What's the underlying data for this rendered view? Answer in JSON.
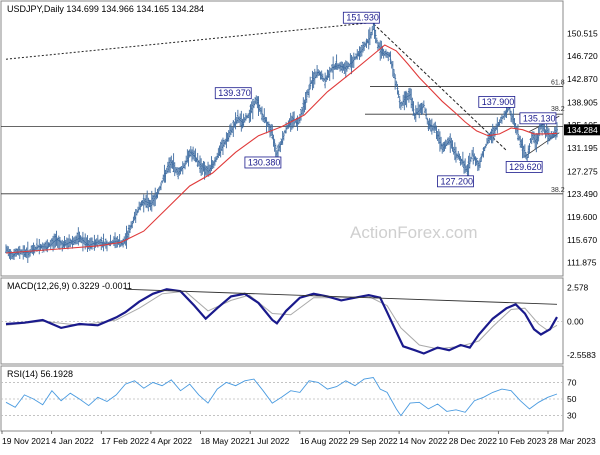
{
  "chart_data": [
    {
      "type": "candlestick",
      "title": "USDJPY,Daily  134.699 134.966 134.165 134.284",
      "ylim": [
        110.3,
        154.5
      ],
      "y_ticks": [
        "150.515",
        "146.720",
        "142.870",
        "138.905",
        "135.105",
        "131.195",
        "127.275",
        "123.490",
        "119.600",
        "115.670",
        "111.875"
      ],
      "y_tick_values": [
        150.515,
        146.72,
        142.87,
        138.905,
        135.105,
        131.195,
        127.275,
        123.49,
        119.6,
        115.67,
        111.875
      ],
      "last_price": "134.284",
      "last_price_value": 134.284,
      "x_labels": [
        "19 Nov 2021",
        "4 Jan 2022",
        "17 Feb 2022",
        "4 Apr 2022",
        "18 May 2022",
        "1 Jul 2022",
        "16 Aug 2022",
        "29 Sep 2022",
        "14 Nov 2022",
        "28 Dec 2022",
        "10 Feb 2023",
        "28 Mar 2023"
      ],
      "price_path": [
        [
          0,
          114.0
        ],
        [
          3,
          113.2
        ],
        [
          6,
          113.8
        ],
        [
          10,
          113.5
        ],
        [
          14,
          114.6
        ],
        [
          18,
          114.5
        ],
        [
          22,
          115.8
        ],
        [
          25,
          114.9
        ],
        [
          28,
          115.3
        ],
        [
          32,
          116.0
        ],
        [
          36,
          114.8
        ],
        [
          40,
          115.4
        ],
        [
          44,
          115.0
        ],
        [
          48,
          115.5
        ],
        [
          51,
          115.0
        ],
        [
          54,
          117.5
        ],
        [
          57,
          120.5
        ],
        [
          60,
          122.3
        ],
        [
          63,
          121.8
        ],
        [
          66,
          123.5
        ],
        [
          69,
          126.5
        ],
        [
          72,
          128.8
        ],
        [
          75,
          127.0
        ],
        [
          78,
          128.5
        ],
        [
          80,
          130.5
        ],
        [
          82,
          129.8
        ],
        [
          85,
          128.2
        ],
        [
          88,
          127.2
        ],
        [
          91,
          129.0
        ],
        [
          94,
          131.3
        ],
        [
          97,
          133.2
        ],
        [
          99,
          134.8
        ],
        [
          101,
          136.2
        ],
        [
          103,
          135.5
        ],
        [
          106,
          137.0
        ],
        [
          109,
          139.37
        ],
        [
          112,
          136.5
        ],
        [
          114,
          135.2
        ],
        [
          116,
          133.5
        ],
        [
          118,
          130.38
        ],
        [
          120,
          132.3
        ],
        [
          122,
          134.5
        ],
        [
          125,
          136.2
        ],
        [
          127,
          135.3
        ],
        [
          130,
          138.8
        ],
        [
          133,
          142.3
        ],
        [
          136,
          144.0
        ],
        [
          139,
          142.5
        ],
        [
          142,
          144.8
        ],
        [
          145,
          145.2
        ],
        [
          148,
          144.5
        ],
        [
          151,
          146.0
        ],
        [
          154,
          147.3
        ],
        [
          157,
          148.9
        ],
        [
          159,
          150.3
        ],
        [
          160,
          151.93
        ],
        [
          162,
          148.5
        ],
        [
          165,
          147.2
        ],
        [
          167,
          146.8
        ],
        [
          170,
          142.2
        ],
        [
          172,
          138.3
        ],
        [
          174,
          139.8
        ],
        [
          176,
          140.2
        ],
        [
          178,
          136.8
        ],
        [
          180,
          137.6
        ],
        [
          182,
          138.4
        ],
        [
          184,
          135.2
        ],
        [
          187,
          134.6
        ],
        [
          190,
          131.0
        ],
        [
          193,
          132.5
        ],
        [
          196,
          130.2
        ],
        [
          199,
          128.8
        ],
        [
          201,
          127.2
        ],
        [
          203,
          130.2
        ],
        [
          206,
          128.3
        ],
        [
          208,
          130.8
        ],
        [
          210,
          132.5
        ],
        [
          213,
          134.2
        ],
        [
          216,
          136.2
        ],
        [
          219,
          137.9
        ],
        [
          221,
          136.0
        ],
        [
          223,
          133.5
        ],
        [
          225,
          131.2
        ],
        [
          227,
          129.62
        ],
        [
          229,
          133.3
        ],
        [
          231,
          132.2
        ],
        [
          233,
          135.13
        ],
        [
          235,
          134.0
        ],
        [
          237,
          133.0
        ],
        [
          240,
          134.284
        ]
      ],
      "ma_path": [
        [
          0,
          113.5
        ],
        [
          20,
          114.1
        ],
        [
          40,
          114.7
        ],
        [
          50,
          115.3
        ],
        [
          60,
          117.2
        ],
        [
          70,
          121.0
        ],
        [
          80,
          124.8
        ],
        [
          90,
          127.0
        ],
        [
          100,
          130.5
        ],
        [
          110,
          133.3
        ],
        [
          120,
          134.8
        ],
        [
          130,
          136.8
        ],
        [
          140,
          140.7
        ],
        [
          150,
          143.8
        ],
        [
          160,
          147.0
        ],
        [
          165,
          148.6
        ],
        [
          170,
          147.6
        ],
        [
          175,
          145.4
        ],
        [
          180,
          143.1
        ],
        [
          185,
          141.1
        ],
        [
          190,
          139.1
        ],
        [
          195,
          137.4
        ],
        [
          200,
          135.6
        ],
        [
          205,
          134.1
        ],
        [
          210,
          133.3
        ],
        [
          215,
          133.6
        ],
        [
          220,
          134.6
        ],
        [
          225,
          134.3
        ],
        [
          230,
          133.6
        ],
        [
          235,
          133.6
        ],
        [
          240,
          133.7
        ]
      ],
      "annotations": {
        "peak": {
          "label": "151.930",
          "value": 151.93
        },
        "high_2": {
          "label": "139.370",
          "value": 139.37
        },
        "low_2": {
          "label": "130.380",
          "value": 130.38
        },
        "low_3": {
          "label": "127.200",
          "value": 127.2
        },
        "high_3": {
          "label": "137.900",
          "value": 137.9
        },
        "low_4": {
          "label": "129.620",
          "value": 129.62
        },
        "high_4": {
          "label": "135.130",
          "value": 135.13
        }
      },
      "fib_levels": [
        {
          "label": "61.8",
          "value": 141.58
        },
        {
          "label": "38.2",
          "value": 137.6
        },
        {
          "label": "38.2",
          "value": 123.49
        }
      ],
      "horizontal_lines": [
        {
          "value": 134.85
        },
        {
          "value": 123.49
        }
      ],
      "watermark": "ActionForex.com",
      "color_up": "#3d6ba0",
      "color_ma": "#e03a3a"
    },
    {
      "type": "line",
      "title": "MACD(12,26,9) 0.3229 -0.0011",
      "ylim": [
        -3.1,
        3.0
      ],
      "y_ticks": [
        "2.578",
        "0.00",
        "-2.5583"
      ],
      "y_tick_values": [
        2.578,
        0.0,
        -2.5583
      ],
      "series": [
        {
          "name": "MACD",
          "color": "#1a1a8c",
          "points": [
            [
              0,
              -0.2
            ],
            [
              8,
              -0.1
            ],
            [
              16,
              0.1
            ],
            [
              24,
              -0.5
            ],
            [
              32,
              -0.2
            ],
            [
              40,
              -0.3
            ],
            [
              48,
              0.3
            ],
            [
              52,
              0.7
            ],
            [
              58,
              1.5
            ],
            [
              64,
              2.1
            ],
            [
              70,
              2.45
            ],
            [
              76,
              2.3
            ],
            [
              82,
              1.2
            ],
            [
              87,
              0.2
            ],
            [
              92,
              1.0
            ],
            [
              98,
              1.9
            ],
            [
              104,
              2.1
            ],
            [
              110,
              1.4
            ],
            [
              116,
              0.1
            ],
            [
              118,
              -0.15
            ],
            [
              122,
              0.8
            ],
            [
              128,
              1.8
            ],
            [
              134,
              2.1
            ],
            [
              140,
              1.9
            ],
            [
              146,
              1.6
            ],
            [
              152,
              1.8
            ],
            [
              158,
              2.0
            ],
            [
              163,
              1.8
            ],
            [
              166,
              0.7
            ],
            [
              170,
              -0.8
            ],
            [
              173,
              -1.9
            ],
            [
              178,
              -2.2
            ],
            [
              182,
              -2.45
            ],
            [
              188,
              -2.0
            ],
            [
              193,
              -2.2
            ],
            [
              198,
              -1.8
            ],
            [
              202,
              -2.0
            ],
            [
              206,
              -1.0
            ],
            [
              212,
              0.2
            ],
            [
              218,
              1.0
            ],
            [
              222,
              1.3
            ],
            [
              226,
              0.6
            ],
            [
              230,
              -0.6
            ],
            [
              233,
              -1.0
            ],
            [
              237,
              -0.6
            ],
            [
              240,
              0.32
            ]
          ]
        },
        {
          "name": "Signal",
          "color": "#aaaaaa",
          "points": [
            [
              0,
              -0.3
            ],
            [
              16,
              0.0
            ],
            [
              32,
              -0.3
            ],
            [
              48,
              0.1
            ],
            [
              58,
              1.0
            ],
            [
              68,
              2.1
            ],
            [
              78,
              2.3
            ],
            [
              88,
              0.8
            ],
            [
              98,
              1.6
            ],
            [
              106,
              2.0
            ],
            [
              116,
              0.6
            ],
            [
              124,
              0.5
            ],
            [
              134,
              1.8
            ],
            [
              146,
              1.8
            ],
            [
              158,
              1.9
            ],
            [
              166,
              1.2
            ],
            [
              172,
              -0.5
            ],
            [
              180,
              -1.8
            ],
            [
              188,
              -2.1
            ],
            [
              198,
              -1.9
            ],
            [
              206,
              -1.5
            ],
            [
              212,
              -0.4
            ],
            [
              220,
              0.9
            ],
            [
              226,
              1.0
            ],
            [
              232,
              -0.2
            ],
            [
              236,
              -0.7
            ],
            [
              240,
              -0.3
            ]
          ]
        }
      ],
      "trendline": [
        [
          52,
          2.45
        ],
        [
          240,
          1.3
        ]
      ]
    },
    {
      "type": "line",
      "title": "RSI(14) 56.1928",
      "ylim": [
        15,
        85
      ],
      "y_ticks": [
        "70",
        "50",
        "30"
      ],
      "y_tick_values": [
        70,
        50,
        30
      ],
      "series": [
        {
          "name": "RSI",
          "color": "#4a9be0",
          "points": [
            [
              0,
              46
            ],
            [
              4,
              40
            ],
            [
              8,
              55
            ],
            [
              12,
              50
            ],
            [
              16,
              43
            ],
            [
              20,
              60
            ],
            [
              24,
              48
            ],
            [
              28,
              57
            ],
            [
              32,
              50
            ],
            [
              36,
              42
            ],
            [
              40,
              52
            ],
            [
              44,
              47
            ],
            [
              48,
              55
            ],
            [
              52,
              68
            ],
            [
              56,
              72
            ],
            [
              60,
              63
            ],
            [
              64,
              70
            ],
            [
              68,
              66
            ],
            [
              72,
              73
            ],
            [
              76,
              60
            ],
            [
              80,
              68
            ],
            [
              84,
              55
            ],
            [
              88,
              45
            ],
            [
              92,
              62
            ],
            [
              96,
              70
            ],
            [
              100,
              66
            ],
            [
              104,
              72
            ],
            [
              108,
              74
            ],
            [
              112,
              60
            ],
            [
              116,
              45
            ],
            [
              120,
              52
            ],
            [
              124,
              60
            ],
            [
              128,
              58
            ],
            [
              132,
              72
            ],
            [
              136,
              70
            ],
            [
              140,
              62
            ],
            [
              144,
              65
            ],
            [
              148,
              72
            ],
            [
              152,
              66
            ],
            [
              156,
              74
            ],
            [
              160,
              76
            ],
            [
              163,
              62
            ],
            [
              166,
              58
            ],
            [
              170,
              38
            ],
            [
              172,
              30
            ],
            [
              176,
              45
            ],
            [
              180,
              46
            ],
            [
              184,
              38
            ],
            [
              188,
              44
            ],
            [
              192,
              35
            ],
            [
              196,
              37
            ],
            [
              200,
              34
            ],
            [
              204,
              48
            ],
            [
              208,
              52
            ],
            [
              212,
              58
            ],
            [
              216,
              62
            ],
            [
              220,
              60
            ],
            [
              224,
              48
            ],
            [
              228,
              38
            ],
            [
              232,
              46
            ],
            [
              236,
              52
            ],
            [
              240,
              56
            ]
          ]
        }
      ]
    }
  ]
}
